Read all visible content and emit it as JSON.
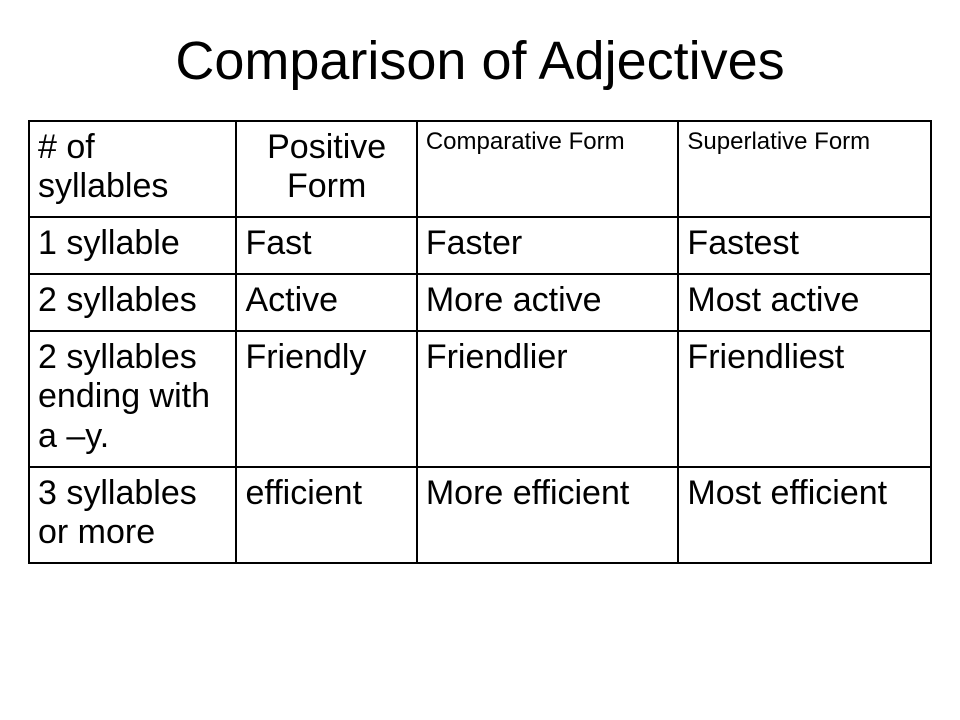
{
  "title": "Comparison of Adjectives",
  "table": {
    "columns": [
      {
        "label": "# of syllables",
        "size": "large",
        "align": "left"
      },
      {
        "label": "Positive Form",
        "size": "large",
        "align": "center"
      },
      {
        "label": "Comparative Form",
        "size": "small",
        "align": "center"
      },
      {
        "label": "Superlative Form",
        "size": "small",
        "align": "center"
      }
    ],
    "rows": [
      [
        "1 syllable",
        "Fast",
        "Faster",
        "Fastest"
      ],
      [
        "2 syllables",
        "Active",
        "More active",
        "Most active"
      ],
      [
        "2 syllables ending with a –y.",
        "Friendly",
        "Friendlier",
        "Friendliest"
      ],
      [
        "3 syllables or more",
        "efficient",
        "More efficient",
        "Most efficient"
      ]
    ],
    "border_color": "#000000",
    "background_color": "#ffffff",
    "header_large_fontsize": 34,
    "header_small_fontsize": 24,
    "body_fontsize": 34,
    "col_widths_pct": [
      23,
      20,
      29,
      28
    ]
  },
  "title_fontsize": 54,
  "text_color": "#000000"
}
